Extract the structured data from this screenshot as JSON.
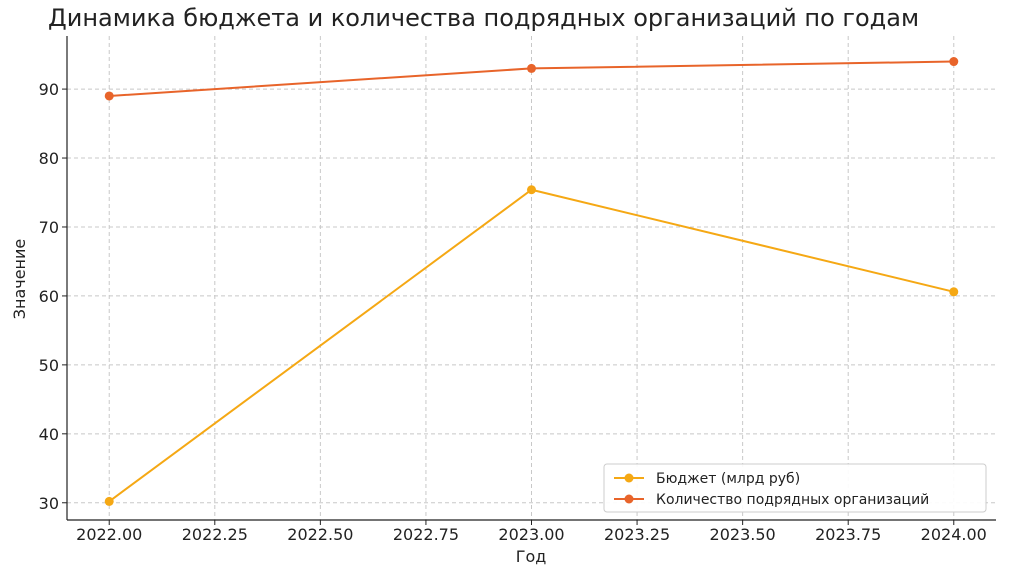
{
  "chart_data": {
    "type": "line",
    "title": "Динамика бюджета и количества подрядных организаций по годам",
    "xlabel": "Год",
    "ylabel": "Значение",
    "x": [
      2022,
      2023,
      2024
    ],
    "xlim": [
      2021.9,
      2024.1
    ],
    "ylim": [
      27.5,
      97.7
    ],
    "x_ticks": [
      2022.0,
      2022.25,
      2022.5,
      2022.75,
      2023.0,
      2023.25,
      2023.5,
      2023.75,
      2024.0
    ],
    "x_tick_labels": [
      "2022.00",
      "2022.25",
      "2022.50",
      "2022.75",
      "2023.00",
      "2023.25",
      "2023.50",
      "2023.75",
      "2024.00"
    ],
    "y_ticks": [
      30,
      40,
      50,
      60,
      70,
      80,
      90
    ],
    "grid": true,
    "legend_position": "lower-right",
    "series": [
      {
        "name": "Бюджет (млрд руб)",
        "values": [
          30.2,
          75.4,
          60.6
        ],
        "color": "#f5a814"
      },
      {
        "name": "Количество подрядных организаций",
        "values": [
          89,
          93,
          94
        ],
        "color": "#e8642a"
      }
    ]
  }
}
